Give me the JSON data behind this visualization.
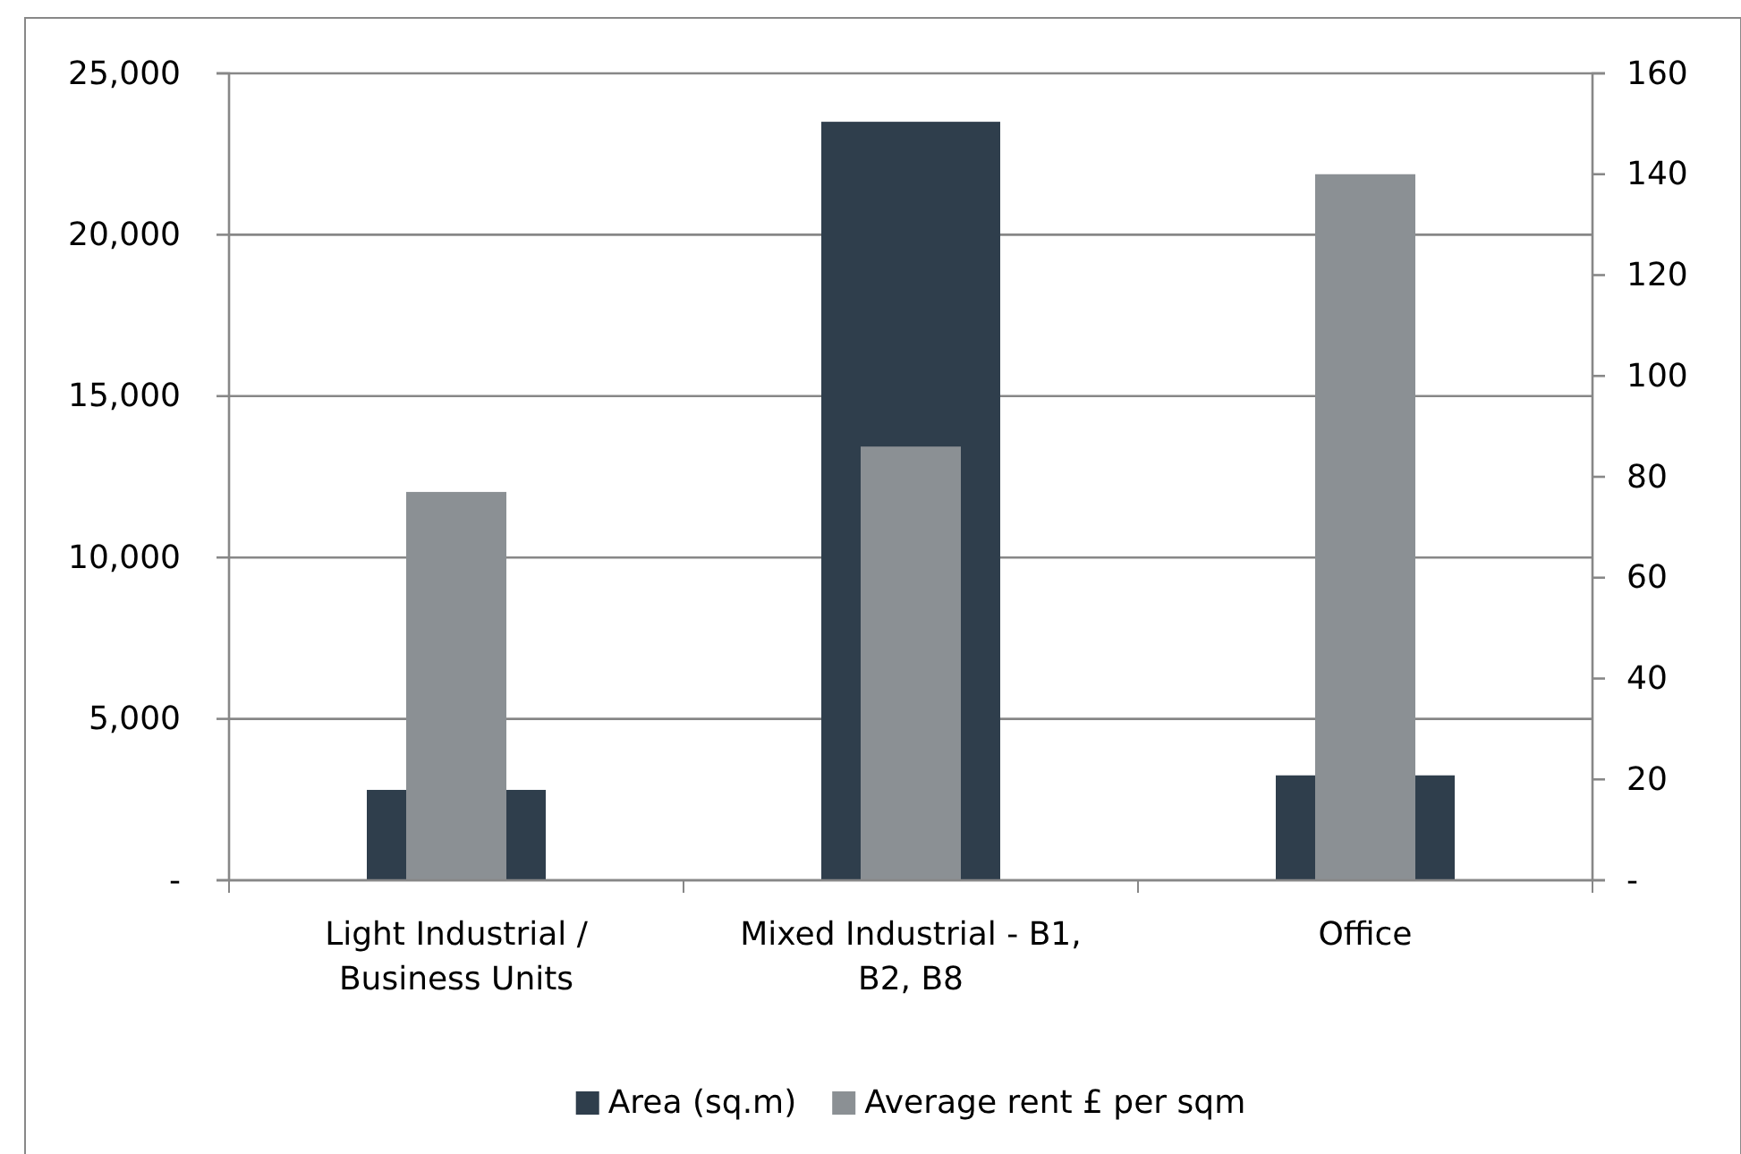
{
  "chart_data": {
    "type": "bar",
    "categories": [
      "Light Industrial / Business Units",
      "Mixed Industrial - B1, B2, B8",
      "Office"
    ],
    "series": [
      {
        "name": "Area (sq.m)",
        "color": "#2f3e4c",
        "values": [
          2800,
          23500,
          3250
        ]
      },
      {
        "name": "Average rent £ per sqm",
        "color": "#8b9094",
        "values": [
          77,
          86,
          140
        ],
        "axis": "y2"
      }
    ],
    "ylim": [
      0,
      25000
    ],
    "yticks": [
      {
        "value": 0,
        "label": "-"
      },
      {
        "value": 5000,
        "label": "5,000"
      },
      {
        "value": 10000,
        "label": "10,000"
      },
      {
        "value": 15000,
        "label": "15,000"
      },
      {
        "value": 20000,
        "label": "20,000"
      },
      {
        "value": 25000,
        "label": "25,000"
      }
    ],
    "y2lim": [
      0,
      160
    ],
    "y2ticks": [
      {
        "value": 0,
        "label": "-"
      },
      20,
      40,
      60,
      80,
      100,
      120,
      140,
      160
    ],
    "grid": "y",
    "legend": "bottom"
  }
}
